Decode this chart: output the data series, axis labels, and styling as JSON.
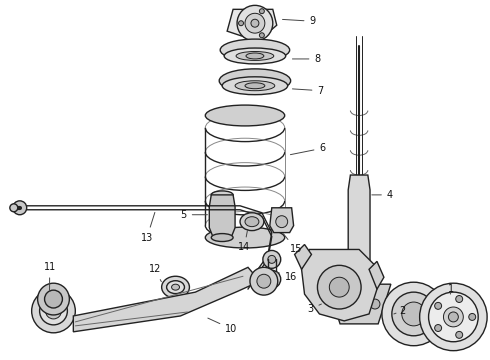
{
  "bg_color": "#ffffff",
  "line_color": "#222222",
  "label_color": "#111111",
  "fig_width": 4.9,
  "fig_height": 3.6,
  "dpi": 100,
  "layout": {
    "xlim": [
      0,
      490
    ],
    "ylim": [
      0,
      360
    ]
  }
}
